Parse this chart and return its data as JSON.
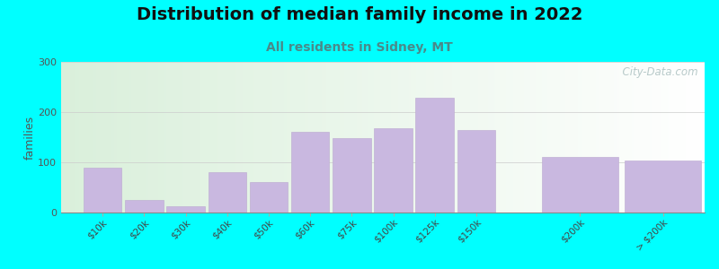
{
  "title": "Distribution of median family income in 2022",
  "subtitle": "All residents in Sidney, MT",
  "ylabel": "families",
  "background_outer": "#00FFFF",
  "bar_color": "#C9B8E0",
  "bar_edge_color": "#BBA8D0",
  "categories": [
    "$10k",
    "$20k",
    "$30k",
    "$40k",
    "$50k",
    "$60k",
    "$75k",
    "$100k",
    "$125k",
    "$150k",
    "$200k",
    "> $200k"
  ],
  "values": [
    90,
    25,
    12,
    80,
    60,
    160,
    148,
    168,
    228,
    165,
    110,
    103
  ],
  "bar_positions": [
    0,
    1,
    2,
    3,
    4,
    5,
    6,
    7,
    8,
    9,
    11,
    13
  ],
  "bar_widths": [
    1,
    1,
    1,
    1,
    1,
    1,
    1,
    1,
    1,
    1,
    2,
    2
  ],
  "ylim": [
    0,
    300
  ],
  "yticks": [
    0,
    100,
    200,
    300
  ],
  "title_fontsize": 14,
  "subtitle_fontsize": 10,
  "ylabel_fontsize": 9,
  "watermark": "  City-Data.com"
}
